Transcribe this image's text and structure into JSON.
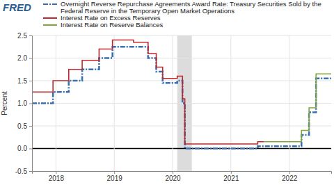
{
  "chart_data": {
    "type": "line",
    "logo": "FRED",
    "y_label": "Percent",
    "xlim": [
      2017.59,
      2022.72
    ],
    "xticks": [
      2018,
      2019,
      2020,
      2021,
      2022
    ],
    "ylim": [
      -0.5,
      2.5
    ],
    "yticks": [
      -0.5,
      {
        "value": 0,
        "label": "0.0"
      },
      0.5,
      {
        "value": 1,
        "label": "1.0"
      },
      1.5,
      {
        "value": 2,
        "label": "2.0"
      },
      2.5
    ],
    "grid": true,
    "legend": "top",
    "recession": [
      2020.08,
      2020.33
    ],
    "series": [
      {
        "name": "Overnight Reverse Repurchase Agreements Award Rate: Treasury Securities Sold by the Federal Reserve in the Temporary Open Market Operations",
        "color": "#3a6fb0",
        "line_style": "dashdot",
        "x": [
          2017.59,
          2017.95,
          2018.22,
          2018.45,
          2018.74,
          2018.97,
          2019.58,
          2019.72,
          2019.83,
          2020.08,
          2020.17,
          2020.21,
          2021.46,
          2022.21,
          2022.34,
          2022.46,
          2022.72
        ],
        "values": [
          1.0,
          1.25,
          1.5,
          1.75,
          2.0,
          2.25,
          2.0,
          1.7,
          1.45,
          1.5,
          1.0,
          0.0,
          0.05,
          0.3,
          0.8,
          1.55,
          1.55
        ]
      },
      {
        "name": "Interest Rate on Excess Reserves",
        "color": "#c0282d",
        "line_style": "solid",
        "x": [
          2017.59,
          2017.95,
          2018.22,
          2018.45,
          2018.74,
          2018.97,
          2019.33,
          2019.58,
          2019.72,
          2019.83,
          2020.08,
          2020.17,
          2020.21,
          2021.46,
          2021.57
        ],
        "values": [
          1.25,
          1.5,
          1.75,
          1.95,
          2.2,
          2.4,
          2.35,
          2.1,
          1.8,
          1.55,
          1.6,
          1.1,
          0.1,
          0.15,
          0.15
        ]
      },
      {
        "name": "Interest Rate on Reserve Balances",
        "color": "#7fa63c",
        "line_style": "solid",
        "x": [
          2021.57,
          2022.21,
          2022.34,
          2022.46,
          2022.72
        ],
        "values": [
          0.15,
          0.4,
          0.9,
          1.65,
          1.65
        ]
      }
    ]
  }
}
